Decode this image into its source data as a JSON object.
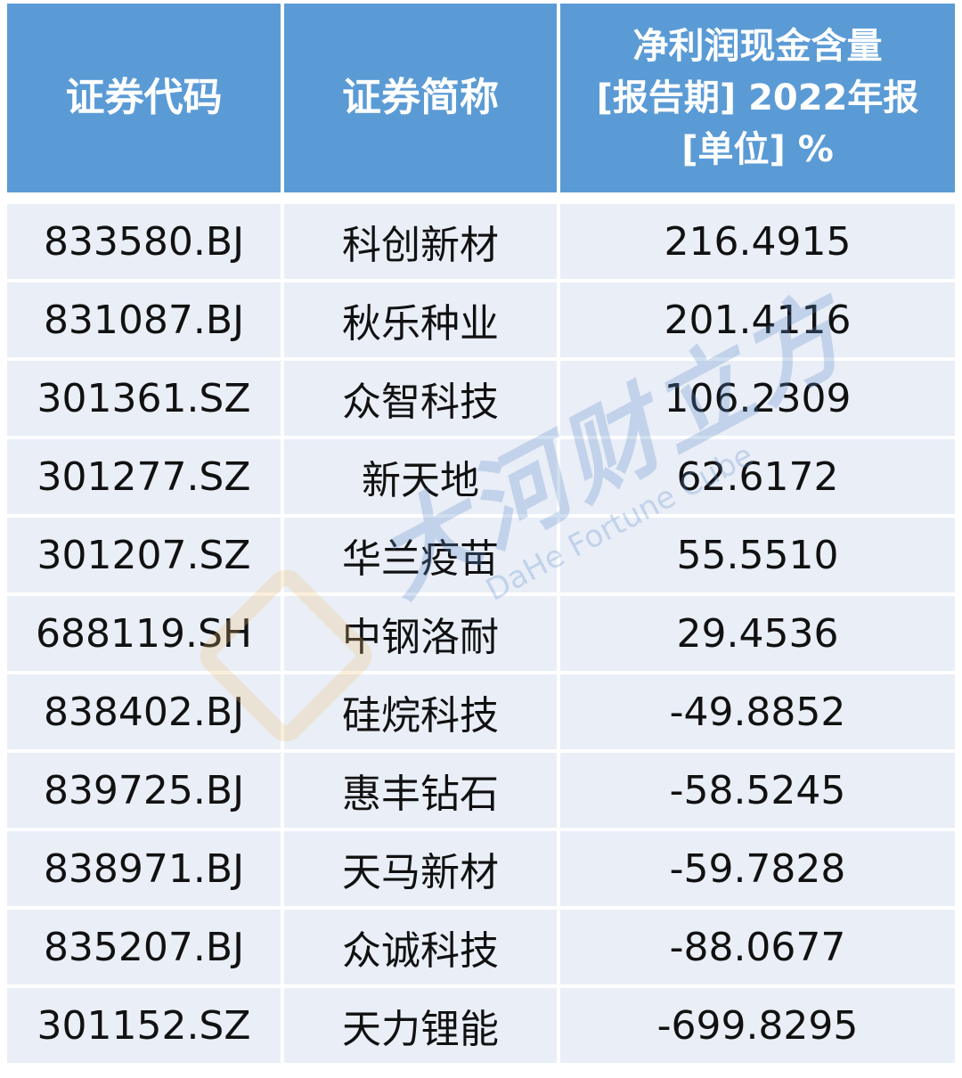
{
  "table": {
    "headers": [
      "证券代码",
      "证券简称",
      [
        "净利润现金含量",
        "[报告期] 2022年报",
        "[单位] %"
      ]
    ],
    "rows": [
      [
        "833580.BJ",
        "科创新材",
        "216.4915"
      ],
      [
        "831087.BJ",
        "秋乐种业",
        "201.4116"
      ],
      [
        "301361.SZ",
        "众智科技",
        "106.2309"
      ],
      [
        "301277.SZ",
        "新天地",
        "62.6172"
      ],
      [
        "301207.SZ",
        "华兰疫苗",
        "55.5510"
      ],
      [
        "688119.SH",
        "中钢洛耐",
        "29.4536"
      ],
      [
        "838402.BJ",
        "硅烷科技",
        "-49.8852"
      ],
      [
        "839725.BJ",
        "惠丰钻石",
        "-58.5245"
      ],
      [
        "838971.BJ",
        "天马新材",
        "-59.7828"
      ],
      [
        "835207.BJ",
        "众诚科技",
        "-88.0677"
      ],
      [
        "301152.SZ",
        "天力锂能",
        "-699.8295"
      ]
    ]
  },
  "watermark": {
    "cn": "大河财立方",
    "en": "DaHe Fortune Cube"
  },
  "colors": {
    "header_bg": "#5b9bd5",
    "row_bg": "#e9eef7"
  }
}
